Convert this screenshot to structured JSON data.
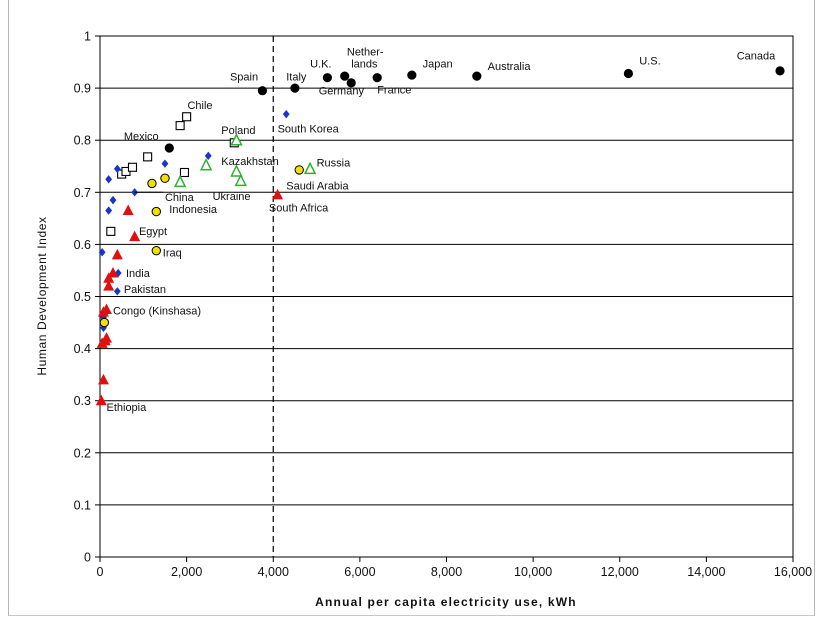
{
  "chart_data": {
    "type": "scatter",
    "title": "",
    "xlabel": "Annual per capita electricity use, kWh",
    "ylabel": "Human Development Index",
    "xlim": [
      0,
      16000
    ],
    "ylim": [
      0,
      1
    ],
    "x_ticks": [
      "0",
      "2,000",
      "4,000",
      "6,000",
      "8,000",
      "10,000",
      "12,000",
      "14,000",
      "16,000"
    ],
    "y_ticks": [
      "0",
      "0.1",
      "0.2",
      "0.3",
      "0.4",
      "0.5",
      "0.6",
      "0.7",
      "0.8",
      "0.9",
      "1"
    ],
    "grid": "horizontal",
    "reference_line": {
      "x": 4000,
      "style": "dashed"
    },
    "colors": {
      "circle": "#000000",
      "diamond": "#1a35c8",
      "triangle": "#e01010",
      "open_triangle": "#30b030",
      "yellow_circle": "#f2e000"
    },
    "points": {
      "circle": [
        [
          1600,
          0.785
        ],
        [
          3750,
          0.895
        ],
        [
          4500,
          0.9
        ],
        [
          5250,
          0.92
        ],
        [
          5650,
          0.923
        ],
        [
          5800,
          0.91
        ],
        [
          6400,
          0.92
        ],
        [
          7200,
          0.925
        ],
        [
          8700,
          0.923
        ],
        [
          12200,
          0.928
        ],
        [
          15700,
          0.933
        ]
      ],
      "open_square": [
        [
          250,
          0.625
        ],
        [
          500,
          0.735
        ],
        [
          600,
          0.74
        ],
        [
          750,
          0.748
        ],
        [
          1100,
          0.768
        ],
        [
          1850,
          0.828
        ],
        [
          2000,
          0.845
        ],
        [
          1950,
          0.738
        ],
        [
          3100,
          0.795
        ]
      ],
      "diamond": [
        [
          50,
          0.585
        ],
        [
          80,
          0.46
        ],
        [
          80,
          0.44
        ],
        [
          200,
          0.725
        ],
        [
          200,
          0.665
        ],
        [
          300,
          0.685
        ],
        [
          400,
          0.745
        ],
        [
          420,
          0.545
        ],
        [
          400,
          0.51
        ],
        [
          800,
          0.7
        ],
        [
          1500,
          0.755
        ],
        [
          2500,
          0.77
        ],
        [
          4300,
          0.85
        ]
      ],
      "red_triangle": [
        [
          30,
          0.3
        ],
        [
          80,
          0.34
        ],
        [
          50,
          0.41
        ],
        [
          120,
          0.415
        ],
        [
          150,
          0.42
        ],
        [
          80,
          0.47
        ],
        [
          150,
          0.475
        ],
        [
          200,
          0.52
        ],
        [
          200,
          0.535
        ],
        [
          300,
          0.545
        ],
        [
          400,
          0.58
        ],
        [
          650,
          0.665
        ],
        [
          800,
          0.615
        ],
        [
          4100,
          0.695
        ]
      ],
      "open_triangle": [
        [
          1850,
          0.72
        ],
        [
          2450,
          0.752
        ],
        [
          3150,
          0.8
        ],
        [
          3150,
          0.74
        ],
        [
          3250,
          0.722
        ],
        [
          4850,
          0.745
        ]
      ],
      "yellow_circle": [
        [
          100,
          0.45
        ],
        [
          1200,
          0.717
        ],
        [
          1500,
          0.727
        ],
        [
          1300,
          0.663
        ],
        [
          1300,
          0.588
        ],
        [
          4600,
          0.743
        ]
      ]
    },
    "labels": [
      {
        "text": "Spain",
        "x": 3000,
        "y": 0.915
      },
      {
        "text": "Italy",
        "x": 4300,
        "y": 0.915
      },
      {
        "text": "U.K.",
        "x": 4850,
        "y": 0.94
      },
      {
        "text": "Nether-",
        "x": 5700,
        "y": 0.963
      },
      {
        "text": "lands",
        "x": 5800,
        "y": 0.94
      },
      {
        "text": "Japan",
        "x": 7450,
        "y": 0.94
      },
      {
        "text": "Australia",
        "x": 8950,
        "y": 0.935
      },
      {
        "text": "U.S.",
        "x": 12450,
        "y": 0.945
      },
      {
        "text": "Canada",
        "x": 14700,
        "y": 0.955
      },
      {
        "text": "Germany",
        "x": 5050,
        "y": 0.888
      },
      {
        "text": "France",
        "x": 6400,
        "y": 0.89
      },
      {
        "text": "Chile",
        "x": 2020,
        "y": 0.86
      },
      {
        "text": "Poland",
        "x": 2800,
        "y": 0.812
      },
      {
        "text": "South Korea",
        "x": 4100,
        "y": 0.815
      },
      {
        "text": "Mexico",
        "x": 550,
        "y": 0.8
      },
      {
        "text": "Russia",
        "x": 5000,
        "y": 0.75
      },
      {
        "text": "Kazakhstan",
        "x": 2800,
        "y": 0.752
      },
      {
        "text": "Saudi Arabia",
        "x": 4300,
        "y": 0.705
      },
      {
        "text": "China",
        "x": 1500,
        "y": 0.683
      },
      {
        "text": "Ukraine",
        "x": 2600,
        "y": 0.685
      },
      {
        "text": "Indonesia",
        "x": 1600,
        "y": 0.66
      },
      {
        "text": "South Africa",
        "x": 3900,
        "y": 0.663
      },
      {
        "text": "Egypt",
        "x": 900,
        "y": 0.618
      },
      {
        "text": "Iraq",
        "x": 1450,
        "y": 0.577
      },
      {
        "text": "India",
        "x": 600,
        "y": 0.537
      },
      {
        "text": "Pakistan",
        "x": 550,
        "y": 0.507
      },
      {
        "text": "Congo (Kinshasa)",
        "x": 300,
        "y": 0.465
      },
      {
        "text": "Ethiopia",
        "x": 150,
        "y": 0.28
      }
    ]
  }
}
